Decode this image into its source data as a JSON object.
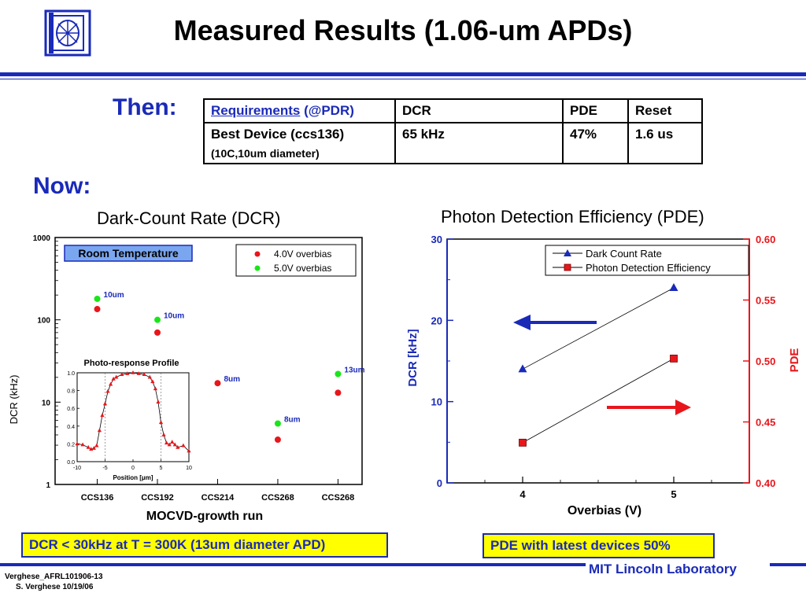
{
  "slide": {
    "title": "Measured Results (1.06-um APDs)",
    "then_label": "Then:",
    "now_label": "Now:",
    "footer_left_1": "Verghese_AFRL101906-13",
    "footer_left_2": "S. Verghese 10/19/06",
    "footer_right": "MIT Lincoln Laboratory"
  },
  "requirements_table": {
    "header": {
      "c1_link": "Requirements",
      "c1_rest": " (@PDR)",
      "c2": "DCR",
      "c3": "PDE",
      "c4": "Reset"
    },
    "row": {
      "c1": "Best Device (ccs136)",
      "c1_sub": "(10C,10um diameter)",
      "c2": "65 kHz",
      "c3": "47%",
      "c4": "1.6 us"
    }
  },
  "dcr_panel": {
    "heading": "Dark-Count Rate (DCR)",
    "callout": "DCR < 30kHz at T = 300K (13um diameter APD)",
    "room_temp_label": "Room Temperature"
  },
  "pde_panel": {
    "heading": "Photon Detection Efficiency (PDE)",
    "callout": "PDE with latest devices 50%"
  },
  "chart_data": [
    {
      "type": "scatter",
      "title": "",
      "xlabel": "MOCVD-growth run",
      "ylabel": "DCR (kHz)",
      "yscale": "log",
      "ylim": [
        1,
        1000
      ],
      "yticks": [
        "1",
        "10",
        "100",
        "1000"
      ],
      "categories": [
        "CCS136",
        "CCS192",
        "CCS214",
        "CCS268",
        "CCS268"
      ],
      "legend_position": "top-right",
      "series": [
        {
          "name": "4.0V overbias",
          "color": "#e8161b",
          "values": [
            135,
            70,
            17,
            3.5,
            13
          ]
        },
        {
          "name": "5.0V overbias",
          "color": "#19e619",
          "values": [
            180,
            100,
            null,
            5.5,
            22
          ]
        }
      ],
      "annotations": [
        {
          "text": "10um",
          "category": "CCS136"
        },
        {
          "text": "10um",
          "category": "CCS192"
        },
        {
          "text": "8um",
          "category": "CCS214"
        },
        {
          "text": "8um",
          "category": "CCS268"
        },
        {
          "text": "13um",
          "category": "CCS268"
        }
      ],
      "grid": false
    },
    {
      "type": "line",
      "title": "Photo-response Profile",
      "xlabel": "Position [μm]",
      "ylabel": "",
      "xlim": [
        -10,
        10
      ],
      "ylim": [
        0,
        1.0
      ],
      "xticks": [
        "-10",
        "-5",
        "0",
        "5",
        "10"
      ],
      "yticks": [
        "0.0",
        "0.2",
        "0.4",
        "0.6",
        "0.8",
        "1.0"
      ],
      "series": [
        {
          "name": "",
          "color": "#e8161b",
          "x": [
            -10,
            -9,
            -8,
            -7.5,
            -7,
            -6.5,
            -6,
            -5.5,
            -5,
            -4.5,
            -4,
            -3.5,
            -3,
            -2,
            -1,
            0,
            1,
            2,
            3,
            3.5,
            4,
            4.5,
            5,
            5.5,
            6,
            6.5,
            7,
            7.5,
            8,
            9,
            10
          ],
          "values": [
            0.2,
            0.19,
            0.16,
            0.14,
            0.15,
            0.18,
            0.35,
            0.52,
            0.65,
            0.79,
            0.87,
            0.93,
            0.95,
            0.98,
            0.99,
            1.0,
            0.99,
            0.98,
            0.95,
            0.9,
            0.82,
            0.67,
            0.44,
            0.3,
            0.21,
            0.19,
            0.22,
            0.19,
            0.16,
            0.18,
            0.12
          ]
        }
      ],
      "grid": false
    },
    {
      "type": "line",
      "title": "",
      "xlabel": "Overbias (V)",
      "ylabel": "DCR [kHz]",
      "ylabel_right": "PDE",
      "x": [
        4,
        5
      ],
      "xticks": [
        "4",
        "5"
      ],
      "ylim": [
        0,
        30
      ],
      "yticks": [
        "0",
        "10",
        "20",
        "30"
      ],
      "ylim_right": [
        0.4,
        0.6
      ],
      "yticks_right": [
        "0.40",
        "0.45",
        "0.50",
        "0.55",
        "0.60"
      ],
      "legend_position": "top-right",
      "series": [
        {
          "name": "Dark Count Rate",
          "axis": "left",
          "color": "#1a2ab8",
          "marker": "triangle",
          "values": [
            14,
            24
          ]
        },
        {
          "name": "Photon Detection Efficiency",
          "axis": "right",
          "color": "#e8161b",
          "marker": "square",
          "values": [
            0.433,
            0.502
          ]
        }
      ],
      "grid": false
    }
  ]
}
